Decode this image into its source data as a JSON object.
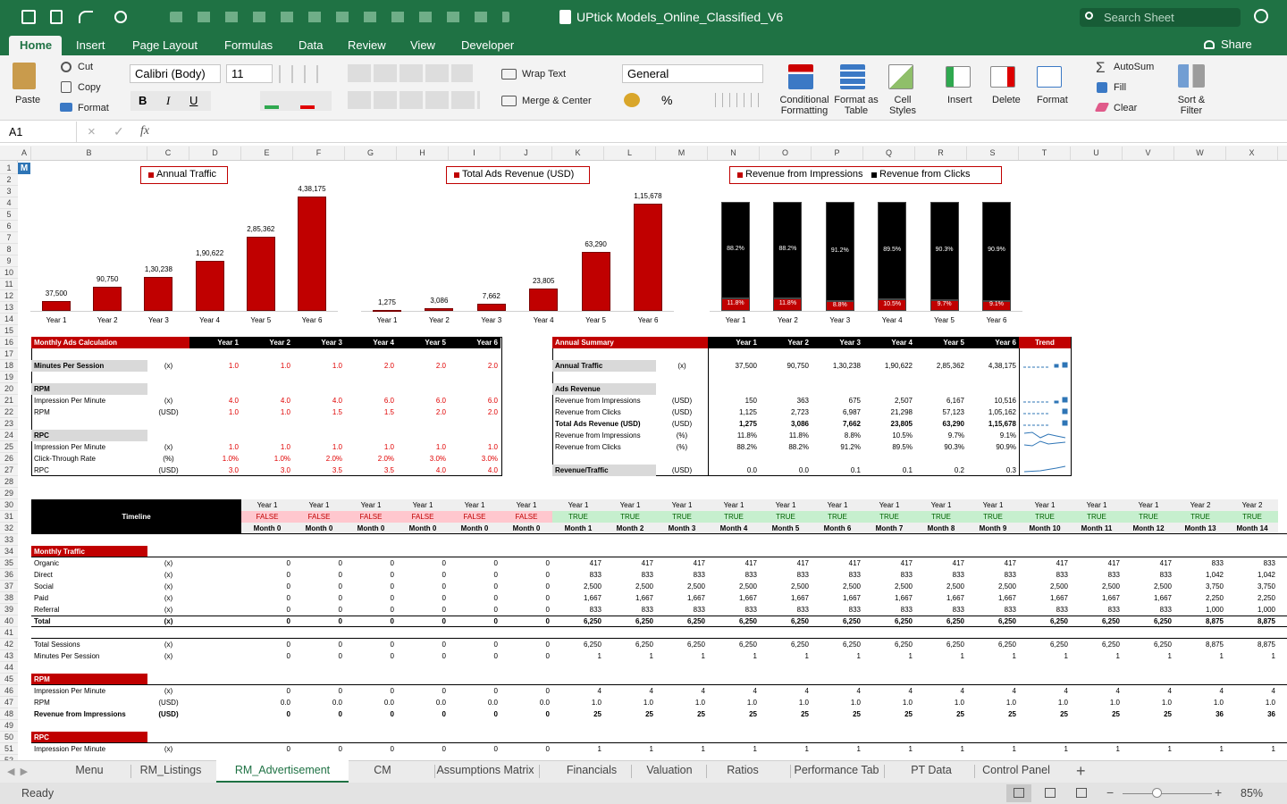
{
  "window": {
    "title": "UPtick Models_Online_Classified_V6",
    "search": "Search Sheet"
  },
  "ribbon": {
    "tabs": [
      "Home",
      "Insert",
      "Page Layout",
      "Formulas",
      "Data",
      "Review",
      "View",
      "Developer"
    ],
    "share": "Share",
    "clipboard": {
      "paste": "Paste",
      "cut": "Cut",
      "copy": "Copy",
      "format": "Format"
    },
    "font": {
      "name": "Calibri (Body)",
      "size": "11"
    },
    "alignment": {
      "wrap": "Wrap Text",
      "merge": "Merge & Center"
    },
    "number": {
      "format": "General"
    },
    "styles": [
      "Conditional Formatting",
      "Format as Table",
      "Cell Styles"
    ],
    "cells": [
      "Insert",
      "Delete",
      "Format"
    ],
    "editing": {
      "autosum": "AutoSum",
      "fill": "Fill",
      "clear": "Clear",
      "sort": "Sort & Filter"
    }
  },
  "formula_bar": {
    "name_box": "A1",
    "fx": "fx"
  },
  "grid": {
    "columns": [
      "A",
      "B",
      "C",
      "D",
      "E",
      "F",
      "G",
      "H",
      "I",
      "J",
      "K",
      "L",
      "M",
      "N",
      "O",
      "P",
      "Q",
      "R",
      "S",
      "T",
      "U",
      "V",
      "W",
      "X"
    ],
    "rows": [
      1,
      2,
      3,
      4,
      5,
      6,
      7,
      8,
      9,
      10,
      11,
      12,
      13,
      14,
      15,
      16,
      17,
      18,
      19,
      20,
      21,
      22,
      23,
      24,
      25,
      26,
      27,
      28,
      29,
      30,
      31,
      32,
      33,
      34,
      35,
      36,
      37,
      38,
      39,
      40,
      41,
      42,
      43,
      44,
      45,
      46,
      47,
      48,
      49,
      50,
      51,
      52
    ],
    "cell_icon": "M"
  },
  "charts": [
    {
      "type": "bar",
      "categories": [
        "Year 1",
        "Year 2",
        "Year 3",
        "Year 4",
        "Year 5",
        "Year 6"
      ],
      "series": [
        {
          "name": "Annual Traffic",
          "color": "#c00000",
          "values": [
            37500,
            90750,
            130238,
            190622,
            285362,
            438175
          ],
          "value_labels": [
            "37,500",
            "90,750",
            "1,30,238",
            "1,90,622",
            "2,85,362",
            "4,38,175"
          ]
        }
      ]
    },
    {
      "type": "bar",
      "categories": [
        "Year 1",
        "Year 2",
        "Year 3",
        "Year 4",
        "Year 5",
        "Year 6"
      ],
      "series": [
        {
          "name": "Total Ads Revenue (USD)",
          "color": "#c00000",
          "values": [
            1275,
            3086,
            7662,
            23805,
            63290,
            115678
          ],
          "value_labels": [
            "1,275",
            "3,086",
            "7,662",
            "23,805",
            "63,290",
            "1,15,678"
          ]
        }
      ]
    },
    {
      "type": "stacked_bar",
      "categories": [
        "Year 1",
        "Year 2",
        "Year 3",
        "Year 4",
        "Year 5",
        "Year 6"
      ],
      "series": [
        {
          "name": "Revenue from Impressions",
          "color": "#c00000",
          "values": [
            11.8,
            11.8,
            8.8,
            10.5,
            9.7,
            9.1
          ],
          "value_labels": [
            "11.8%",
            "11.8%",
            "8.8%",
            "10.5%",
            "9.7%",
            "9.1%"
          ]
        },
        {
          "name": "Revenue from Clicks",
          "color": "#000000",
          "values": [
            88.2,
            88.2,
            91.2,
            89.5,
            90.3,
            90.9
          ],
          "value_labels": [
            "88.2%",
            "88.2%",
            "91.2%",
            "89.5%",
            "90.3%",
            "90.9%"
          ]
        }
      ]
    }
  ],
  "ads_calc": {
    "title": "Monthly Ads Calculation",
    "years": [
      "Year 1",
      "Year 2",
      "Year 3",
      "Year 4",
      "Year 5",
      "Year 6"
    ],
    "rows": [
      {
        "label": "Minutes Per Session",
        "unit": "(x)",
        "values": [
          "1.0",
          "1.0",
          "1.0",
          "2.0",
          "2.0",
          "2.0"
        ]
      },
      {
        "label": "RPM"
      },
      {
        "label": "Impression Per Minute",
        "unit": "(x)",
        "values": [
          "4.0",
          "4.0",
          "4.0",
          "6.0",
          "6.0",
          "6.0"
        ]
      },
      {
        "label": "RPM",
        "unit": "(USD)",
        "values": [
          "1.0",
          "1.0",
          "1.5",
          "1.5",
          "2.0",
          "2.0"
        ]
      },
      {
        "label": "RPC"
      },
      {
        "label": "Impression Per Minute",
        "unit": "(x)",
        "values": [
          "1.0",
          "1.0",
          "1.0",
          "1.0",
          "1.0",
          "1.0"
        ]
      },
      {
        "label": "Click-Through Rate",
        "unit": "(%)",
        "values": [
          "1.0%",
          "1.0%",
          "2.0%",
          "2.0%",
          "3.0%",
          "3.0%"
        ]
      },
      {
        "label": "RPC",
        "unit": "(USD)",
        "values": [
          "3.0",
          "3.0",
          "3.5",
          "3.5",
          "4.0",
          "4.0"
        ]
      }
    ]
  },
  "annual_summary": {
    "title": "Annual Summary",
    "years": [
      "Year 1",
      "Year 2",
      "Year 3",
      "Year 4",
      "Year 5",
      "Year 6"
    ],
    "trend": "Trend",
    "rows": [
      {
        "label": "Annual Traffic",
        "unit": "(x)",
        "values": [
          "37,500",
          "90,750",
          "1,30,238",
          "1,90,622",
          "2,85,362",
          "4,38,175"
        ]
      },
      {
        "label": "Ads Revenue"
      },
      {
        "label": "Revenue from Impressions",
        "unit": "(USD)",
        "values": [
          "150",
          "363",
          "675",
          "2,507",
          "6,167",
          "10,516"
        ]
      },
      {
        "label": "Revenue from Clicks",
        "unit": "(USD)",
        "values": [
          "1,125",
          "2,723",
          "6,987",
          "21,298",
          "57,123",
          "1,05,162"
        ]
      },
      {
        "label": "Total Ads Revenue (USD)",
        "unit": "(USD)",
        "values": [
          "1,275",
          "3,086",
          "7,662",
          "23,805",
          "63,290",
          "1,15,678"
        ]
      },
      {
        "label": "Revenue from Impressions",
        "unit": "(%)",
        "values": [
          "11.8%",
          "11.8%",
          "8.8%",
          "10.5%",
          "9.7%",
          "9.1%"
        ]
      },
      {
        "label": "Revenue from Clicks",
        "unit": "(%)",
        "values": [
          "88.2%",
          "88.2%",
          "91.2%",
          "89.5%",
          "90.3%",
          "90.9%"
        ]
      },
      {
        "label": "Revenue/Traffic",
        "unit": "(USD)",
        "values": [
          "0.0",
          "0.0",
          "0.1",
          "0.1",
          "0.2",
          "0.3"
        ]
      }
    ]
  },
  "timeline": {
    "title": "Timeline",
    "years": [
      "Year 1",
      "Year 1",
      "Year 1",
      "Year 1",
      "Year 1",
      "Year 1",
      "Year 1",
      "Year 1",
      "Year 1",
      "Year 1",
      "Year 1",
      "Year 1",
      "Year 1",
      "Year 1",
      "Year 1",
      "Year 1",
      "Year 1",
      "Year 1",
      "Year 2",
      "Year 2"
    ],
    "flags": [
      "FALSE",
      "FALSE",
      "FALSE",
      "FALSE",
      "FALSE",
      "FALSE",
      "TRUE",
      "TRUE",
      "TRUE",
      "TRUE",
      "TRUE",
      "TRUE",
      "TRUE",
      "TRUE",
      "TRUE",
      "TRUE",
      "TRUE",
      "TRUE",
      "TRUE",
      "TRUE"
    ],
    "months": [
      "Month 0",
      "Month 0",
      "Month 0",
      "Month 0",
      "Month 0",
      "Month 0",
      "Month 1",
      "Month 2",
      "Month 3",
      "Month 4",
      "Month 5",
      "Month 6",
      "Month 7",
      "Month 8",
      "Month 9",
      "Month 10",
      "Month 11",
      "Month 12",
      "Month 13",
      "Month 14"
    ],
    "rows": [
      {
        "label": "Monthly Traffic"
      },
      {
        "label": "Organic",
        "unit": "(x)",
        "values": [
          "0",
          "0",
          "0",
          "0",
          "0",
          "0",
          "417",
          "417",
          "417",
          "417",
          "417",
          "417",
          "417",
          "417",
          "417",
          "417",
          "417",
          "417",
          "833",
          "833"
        ]
      },
      {
        "label": "Direct",
        "unit": "(x)",
        "values": [
          "0",
          "0",
          "0",
          "0",
          "0",
          "0",
          "833",
          "833",
          "833",
          "833",
          "833",
          "833",
          "833",
          "833",
          "833",
          "833",
          "833",
          "833",
          "1,042",
          "1,042"
        ]
      },
      {
        "label": "Social",
        "unit": "(x)",
        "values": [
          "0",
          "0",
          "0",
          "0",
          "0",
          "0",
          "2,500",
          "2,500",
          "2,500",
          "2,500",
          "2,500",
          "2,500",
          "2,500",
          "2,500",
          "2,500",
          "2,500",
          "2,500",
          "2,500",
          "3,750",
          "3,750"
        ]
      },
      {
        "label": "Paid",
        "unit": "(x)",
        "values": [
          "0",
          "0",
          "0",
          "0",
          "0",
          "0",
          "1,667",
          "1,667",
          "1,667",
          "1,667",
          "1,667",
          "1,667",
          "1,667",
          "1,667",
          "1,667",
          "1,667",
          "1,667",
          "1,667",
          "2,250",
          "2,250"
        ]
      },
      {
        "label": "Referral",
        "unit": "(x)",
        "values": [
          "0",
          "0",
          "0",
          "0",
          "0",
          "0",
          "833",
          "833",
          "833",
          "833",
          "833",
          "833",
          "833",
          "833",
          "833",
          "833",
          "833",
          "833",
          "1,000",
          "1,000"
        ]
      },
      {
        "label": "Total",
        "unit": "(x)",
        "values": [
          "0",
          "0",
          "0",
          "0",
          "0",
          "0",
          "6,250",
          "6,250",
          "6,250",
          "6,250",
          "6,250",
          "6,250",
          "6,250",
          "6,250",
          "6,250",
          "6,250",
          "6,250",
          "6,250",
          "8,875",
          "8,875"
        ]
      },
      {
        "label": "Total Sessions",
        "unit": "(x)",
        "values": [
          "0",
          "0",
          "0",
          "0",
          "0",
          "0",
          "6,250",
          "6,250",
          "6,250",
          "6,250",
          "6,250",
          "6,250",
          "6,250",
          "6,250",
          "6,250",
          "6,250",
          "6,250",
          "6,250",
          "8,875",
          "8,875"
        ]
      },
      {
        "label": "Minutes Per Session",
        "unit": "(x)",
        "values": [
          "0",
          "0",
          "0",
          "0",
          "0",
          "0",
          "1",
          "1",
          "1",
          "1",
          "1",
          "1",
          "1",
          "1",
          "1",
          "1",
          "1",
          "1",
          "1",
          "1"
        ]
      },
      {
        "label": "RPM"
      },
      {
        "label": "Impression Per Minute",
        "unit": "(x)",
        "values": [
          "0",
          "0",
          "0",
          "0",
          "0",
          "0",
          "4",
          "4",
          "4",
          "4",
          "4",
          "4",
          "4",
          "4",
          "4",
          "4",
          "4",
          "4",
          "4",
          "4"
        ]
      },
      {
        "label": "RPM",
        "unit": "(USD)",
        "values": [
          "0.0",
          "0.0",
          "0.0",
          "0.0",
          "0.0",
          "0.0",
          "1.0",
          "1.0",
          "1.0",
          "1.0",
          "1.0",
          "1.0",
          "1.0",
          "1.0",
          "1.0",
          "1.0",
          "1.0",
          "1.0",
          "1.0",
          "1.0"
        ]
      },
      {
        "label": "Revenue from Impressions",
        "unit": "(USD)",
        "values": [
          "0",
          "0",
          "0",
          "0",
          "0",
          "0",
          "25",
          "25",
          "25",
          "25",
          "25",
          "25",
          "25",
          "25",
          "25",
          "25",
          "25",
          "25",
          "36",
          "36"
        ]
      },
      {
        "label": "RPC"
      },
      {
        "label": "Impression Per Minute",
        "unit": "(x)",
        "values": [
          "0",
          "0",
          "0",
          "0",
          "0",
          "0",
          "1",
          "1",
          "1",
          "1",
          "1",
          "1",
          "1",
          "1",
          "1",
          "1",
          "1",
          "1",
          "1",
          "1"
        ]
      }
    ]
  },
  "sheet_tabs": [
    "Menu",
    "RM_Listings",
    "RM_Advertisement",
    "CM",
    "Assumptions Matrix",
    "Financials",
    "Valuation",
    "Ratios",
    "Performance Tab",
    "PT Data",
    "Control Panel"
  ],
  "active_tab": 2,
  "status": {
    "ready": "Ready",
    "zoom": "85%"
  }
}
